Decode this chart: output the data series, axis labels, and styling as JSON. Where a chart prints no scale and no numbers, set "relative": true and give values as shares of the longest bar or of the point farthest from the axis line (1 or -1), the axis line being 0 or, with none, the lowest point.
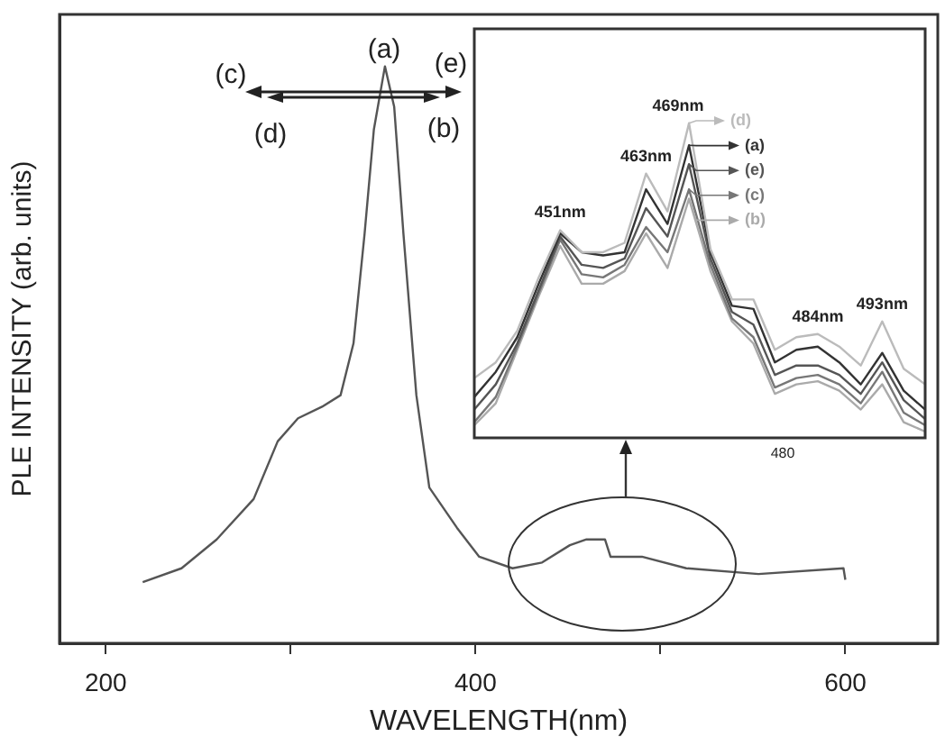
{
  "chart_data": [
    {
      "type": "line",
      "xlabel": "WAVELENGTH(nm)",
      "ylabel": "PLE INTENSITY (arb. units)",
      "relative": true,
      "xlim": [
        175,
        650
      ],
      "xticks": [
        200,
        {
          "value": 300,
          "label": null
        },
        400,
        {
          "value": 500,
          "label": null
        },
        600
      ],
      "x": [
        220,
        241,
        260,
        280,
        293,
        304,
        317,
        327,
        334,
        340,
        345,
        351,
        356,
        361,
        368,
        375,
        390,
        402,
        420,
        436,
        451,
        460,
        470,
        473,
        490,
        514,
        553,
        599,
        600
      ],
      "series": [
        {
          "color": "#555555",
          "values": [
            0.106,
            0.13,
            0.18,
            0.25,
            0.35,
            0.39,
            0.41,
            0.43,
            0.52,
            0.71,
            0.89,
            1,
            0.93,
            0.71,
            0.43,
            0.27,
            0.2,
            0.15,
            0.13,
            0.14,
            0.17,
            0.18,
            0.18,
            0.15,
            0.15,
            0.13,
            0.12,
            0.13,
            0.11
          ]
        }
      ],
      "annotations": [
        "(a)",
        "(b)",
        "(c)",
        "(d)",
        "(e)"
      ]
    },
    {
      "type": "line",
      "relative": true,
      "legend": "top right",
      "categories": [
        null,
        null,
        null,
        null,
        null,
        null,
        null,
        null,
        null,
        null,
        null,
        null,
        null,
        null,
        null,
        null,
        null,
        null,
        null,
        null,
        null,
        null
      ],
      "series": [
        {
          "name": "(d)",
          "color": "#bbbbbb",
          "values": [
            0.19,
            0.24,
            0.34,
            0.51,
            0.66,
            0.59,
            0.59,
            0.62,
            0.84,
            0.72,
            1,
            0.6,
            0.44,
            0.44,
            0.28,
            0.32,
            0.33,
            0.29,
            0.23,
            0.37,
            0.22,
            0.17
          ]
        },
        {
          "name": "(a)",
          "color": "#333333",
          "values": [
            0.13,
            0.21,
            0.32,
            0.49,
            0.65,
            0.59,
            0.58,
            0.59,
            0.79,
            0.68,
            0.93,
            0.59,
            0.42,
            0.41,
            0.24,
            0.28,
            0.29,
            0.24,
            0.17,
            0.27,
            0.15,
            0.09
          ]
        },
        {
          "name": "(e)",
          "color": "#555555",
          "values": [
            0.09,
            0.17,
            0.3,
            0.47,
            0.64,
            0.55,
            0.54,
            0.57,
            0.73,
            0.64,
            0.87,
            0.57,
            0.4,
            0.36,
            0.2,
            0.23,
            0.23,
            0.2,
            0.14,
            0.24,
            0.12,
            0.06
          ]
        },
        {
          "name": "(c)",
          "color": "#777777",
          "values": [
            0.05,
            0.13,
            0.29,
            0.46,
            0.63,
            0.52,
            0.51,
            0.55,
            0.67,
            0.59,
            0.79,
            0.55,
            0.38,
            0.32,
            0.16,
            0.19,
            0.2,
            0.17,
            0.11,
            0.21,
            0.08,
            0.04
          ]
        },
        {
          "name": "(b)",
          "color": "#aaaaaa",
          "values": [
            0.04,
            0.11,
            0.28,
            0.45,
            0.61,
            0.49,
            0.49,
            0.53,
            0.65,
            0.54,
            0.76,
            0.53,
            0.37,
            0.3,
            0.14,
            0.17,
            0.18,
            0.15,
            0.09,
            0.17,
            0.05,
            0.02
          ]
        }
      ],
      "annotations": [
        "451nm",
        "463nm",
        "469nm",
        "484nm",
        "493nm",
        "480"
      ]
    }
  ]
}
